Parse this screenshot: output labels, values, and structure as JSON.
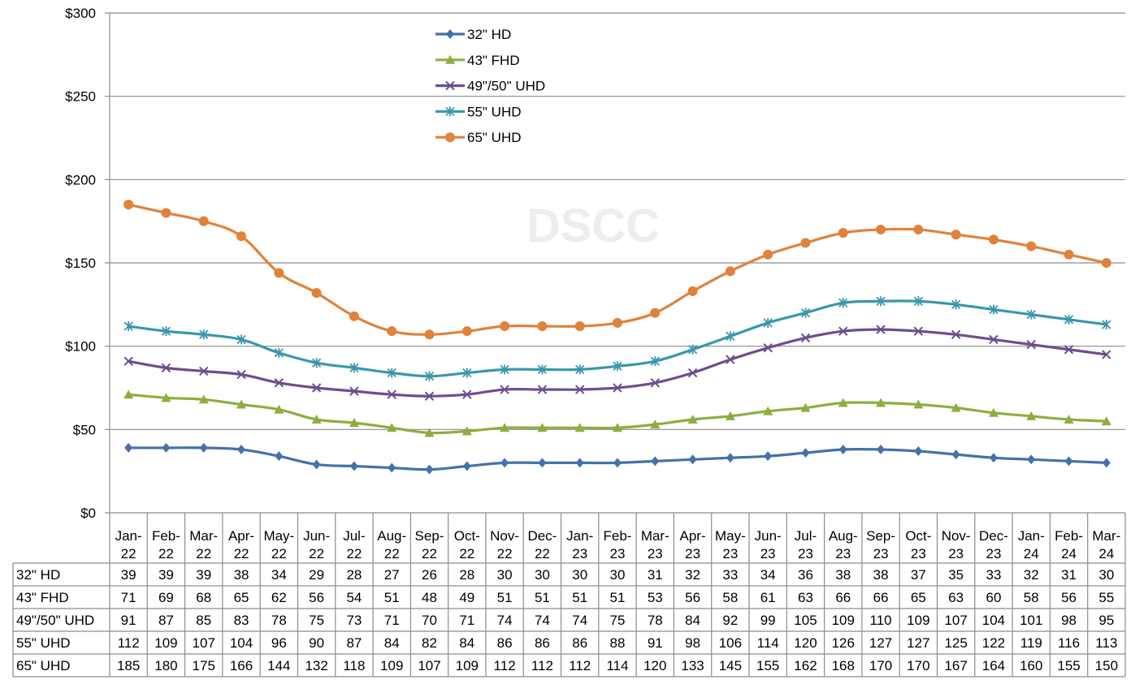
{
  "chart_data": {
    "type": "line",
    "watermark": "DSCC",
    "y_ticks": [
      "$0",
      "$50",
      "$100",
      "$150",
      "$200",
      "$250",
      "$300"
    ],
    "ylim": [
      0,
      300
    ],
    "grid": true,
    "legend_position": "top-center",
    "categories": [
      [
        "Jan-",
        "22"
      ],
      [
        "Feb-",
        "22"
      ],
      [
        "Mar-",
        "22"
      ],
      [
        "Apr-",
        "22"
      ],
      [
        "May-",
        "22"
      ],
      [
        "Jun-",
        "22"
      ],
      [
        "Jul-",
        "22"
      ],
      [
        "Aug-",
        "22"
      ],
      [
        "Sep-",
        "22"
      ],
      [
        "Oct-",
        "22"
      ],
      [
        "Nov-",
        "22"
      ],
      [
        "Dec-",
        "22"
      ],
      [
        "Jan-",
        "23"
      ],
      [
        "Feb-",
        "23"
      ],
      [
        "Mar-",
        "23"
      ],
      [
        "Apr-",
        "23"
      ],
      [
        "May-",
        "23"
      ],
      [
        "Jun-",
        "23"
      ],
      [
        "Jul-",
        "23"
      ],
      [
        "Aug-",
        "23"
      ],
      [
        "Sep-",
        "23"
      ],
      [
        "Oct-",
        "23"
      ],
      [
        "Nov-",
        "23"
      ],
      [
        "Dec-",
        "23"
      ],
      [
        "Jan-",
        "24"
      ],
      [
        "Feb-",
        "24"
      ],
      [
        "Mar-",
        "24"
      ]
    ],
    "series": [
      {
        "name": "32\" HD",
        "color": "#4472a8",
        "marker": "diamond",
        "values": [
          39,
          39,
          39,
          38,
          34,
          29,
          28,
          27,
          26,
          28,
          30,
          30,
          30,
          30,
          31,
          32,
          33,
          34,
          36,
          38,
          38,
          37,
          35,
          33,
          32,
          31,
          30
        ]
      },
      {
        "name": "43\" FHD",
        "color": "#8fad3f",
        "marker": "triangle",
        "values": [
          71,
          69,
          68,
          65,
          62,
          56,
          54,
          51,
          48,
          49,
          51,
          51,
          51,
          51,
          53,
          56,
          58,
          61,
          63,
          66,
          66,
          65,
          63,
          60,
          58,
          56,
          55
        ]
      },
      {
        "name": "49\"/50\" UHD",
        "color": "#6e4d8f",
        "marker": "x",
        "values": [
          91,
          87,
          85,
          83,
          78,
          75,
          73,
          71,
          70,
          71,
          74,
          74,
          74,
          75,
          78,
          84,
          92,
          99,
          105,
          109,
          110,
          109,
          107,
          104,
          101,
          98,
          95
        ]
      },
      {
        "name": "55\" UHD",
        "color": "#3a97ad",
        "marker": "star",
        "values": [
          112,
          109,
          107,
          104,
          96,
          90,
          87,
          84,
          82,
          84,
          86,
          86,
          86,
          88,
          91,
          98,
          106,
          114,
          120,
          126,
          127,
          127,
          125,
          122,
          119,
          116,
          113
        ]
      },
      {
        "name": "65\" UHD",
        "color": "#e0823a",
        "marker": "circle",
        "values": [
          185,
          180,
          175,
          166,
          144,
          132,
          118,
          109,
          107,
          109,
          112,
          112,
          112,
          114,
          120,
          133,
          145,
          155,
          162,
          168,
          170,
          170,
          167,
          164,
          160,
          155,
          150
        ]
      }
    ]
  }
}
